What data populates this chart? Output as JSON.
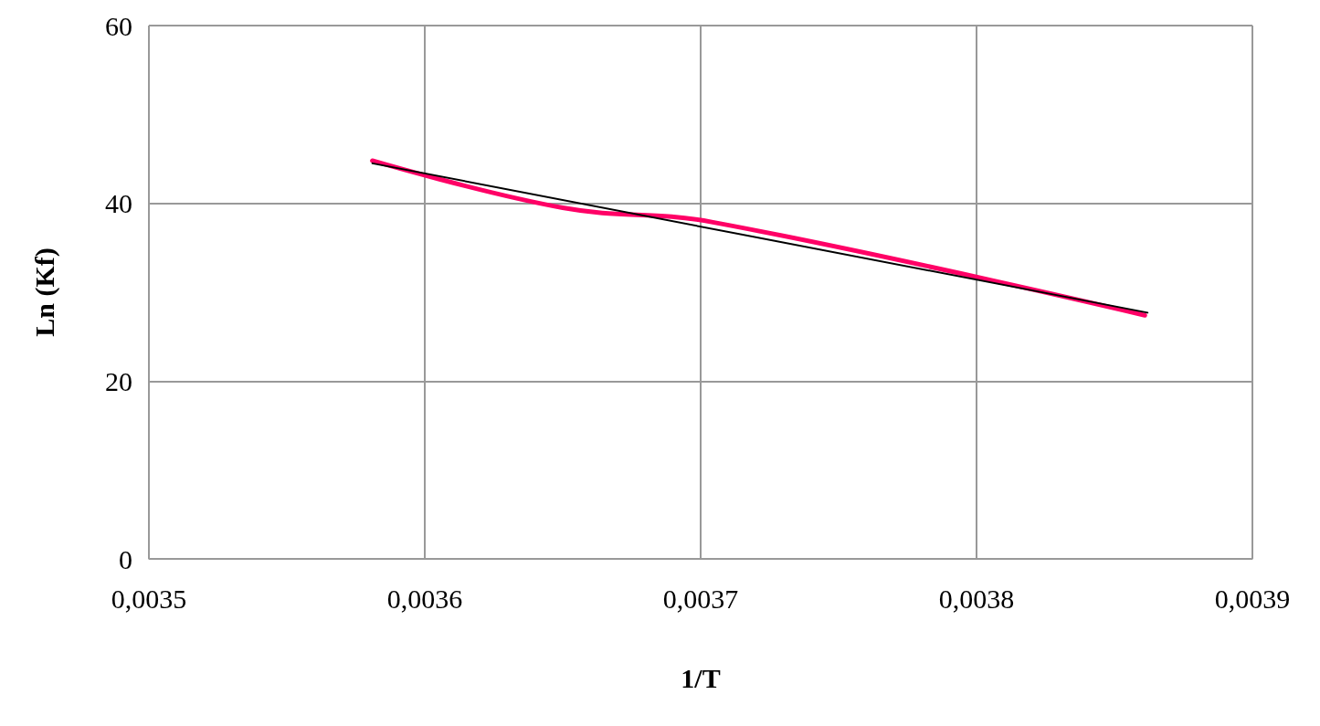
{
  "chart_data": {
    "type": "line",
    "xlabel": "1/T",
    "ylabel": "Ln (Kf)",
    "xlim": [
      0.0035,
      0.0039
    ],
    "xticks": [
      {
        "value": 0.0035,
        "label": "0,0035"
      },
      {
        "value": 0.0036,
        "label": "0,0036"
      },
      {
        "value": 0.0037,
        "label": "0,0037"
      },
      {
        "value": 0.0038,
        "label": "0,0038"
      },
      {
        "value": 0.0039,
        "label": "0,0039"
      }
    ],
    "ylim": [
      0,
      60
    ],
    "yticks": [
      0,
      20,
      40,
      60
    ],
    "grid": true,
    "marker": "none",
    "line_style": "solid",
    "series": [
      {
        "color": "#ff0066",
        "x": [
          0.003581,
          0.00365,
          0.003704,
          0.003861
        ],
        "values": [
          44.8,
          39.5,
          37.9,
          27.4
        ]
      },
      {
        "color": "#000000",
        "x": [
          0.003581,
          0.003862
        ],
        "values": [
          44.5,
          27.7
        ]
      }
    ]
  }
}
